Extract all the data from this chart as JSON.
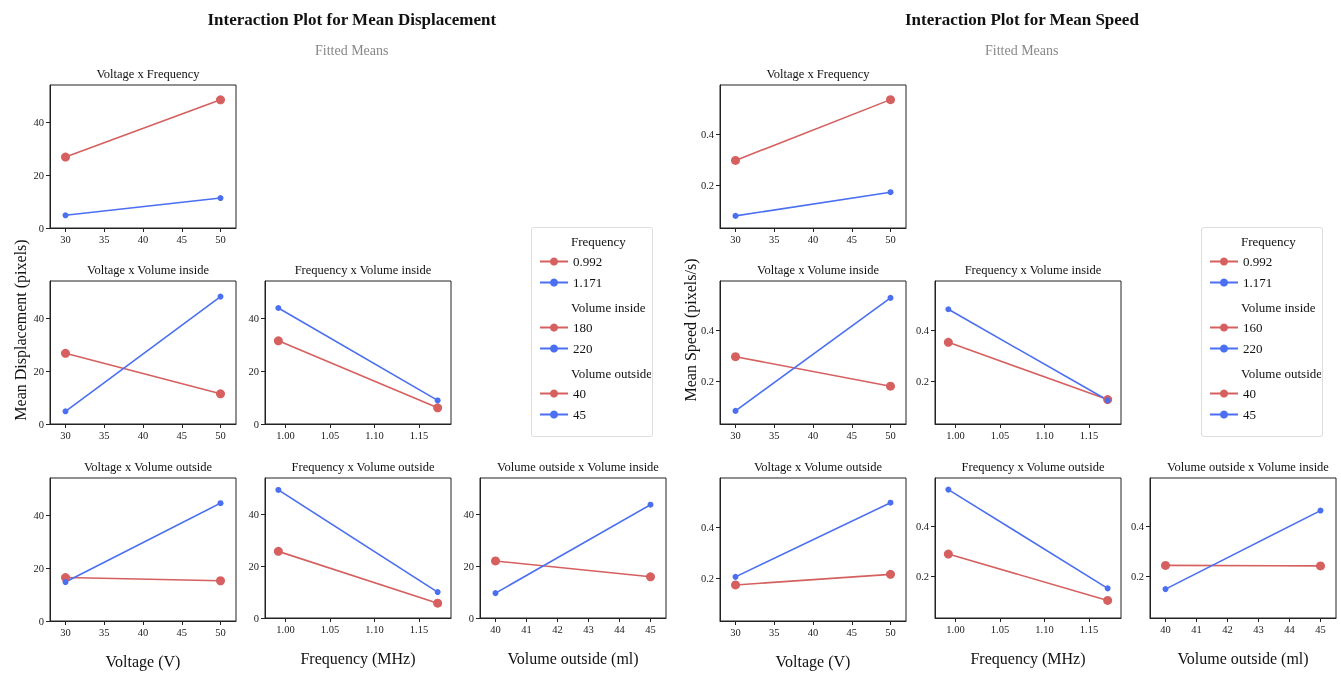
{
  "chart_data": [
    {
      "type": "line",
      "title": "Voltage x Frequency",
      "annotations": [
        "Interaction Plot for Mean Displacement",
        "Fitted Means"
      ],
      "legend": "right",
      "legend_title": "Frequency",
      "marker": "circle",
      "x": [
        30,
        50
      ],
      "xlim": [
        28,
        52
      ],
      "xticks": [
        30,
        35,
        40,
        45,
        50
      ],
      "ylim": [
        0,
        54
      ],
      "yticks": [
        0,
        20,
        40
      ],
      "series": [
        {
          "name": "0.992",
          "color": "#d65f5f",
          "values": [
            26.8,
            48.4
          ]
        },
        {
          "name": "1.171",
          "color": "#4a6ff0",
          "values": [
            4.8,
            11.3
          ]
        }
      ]
    },
    {
      "type": "line",
      "title": "Voltage x Volume inside",
      "ylabel": "Mean Displacement (pixels)",
      "legend": "right",
      "legend_title": "Volume inside",
      "marker": "circle",
      "x": [
        30,
        50
      ],
      "xlim": [
        28,
        52
      ],
      "xticks": [
        30,
        35,
        40,
        45,
        50
      ],
      "ylim": [
        0,
        54
      ],
      "yticks": [
        0,
        20,
        40
      ],
      "series": [
        {
          "name": "180",
          "color": "#d65f5f",
          "values": [
            26.7,
            11.4
          ]
        },
        {
          "name": "220",
          "color": "#4a6ff0",
          "values": [
            4.8,
            48.1
          ]
        }
      ]
    },
    {
      "type": "line",
      "title": "Frequency x Volume inside",
      "marker": "circle",
      "x": [
        0.992,
        1.171
      ],
      "xlim": [
        0.977,
        1.186
      ],
      "xticks": [
        {
          "value": 1.0,
          "label": "1.00"
        },
        {
          "value": 1.05,
          "label": "1.05"
        },
        {
          "value": 1.1,
          "label": "1.10"
        },
        {
          "value": 1.15,
          "label": "1.15"
        }
      ],
      "ylim": [
        0,
        54
      ],
      "yticks": [
        0,
        20,
        40
      ],
      "series": [
        {
          "color": "#d65f5f",
          "values": [
            31.4,
            6.1
          ]
        },
        {
          "color": "#4a6ff0",
          "values": [
            43.8,
            8.9
          ]
        }
      ]
    },
    {
      "type": "line",
      "title": "Voltage x Volume outside",
      "xlabel": "Voltage (V)",
      "legend": "right",
      "legend_title": "Volume outside",
      "marker": "circle",
      "x": [
        30,
        50
      ],
      "xlim": [
        28,
        52
      ],
      "xticks": [
        30,
        35,
        40,
        45,
        50
      ],
      "ylim": [
        0,
        54
      ],
      "yticks": [
        0,
        20,
        40
      ],
      "series": [
        {
          "name": "40",
          "color": "#d65f5f",
          "values": [
            16.4,
            15.2
          ]
        },
        {
          "name": "45",
          "color": "#4a6ff0",
          "values": [
            14.7,
            44.5
          ]
        }
      ]
    },
    {
      "type": "line",
      "title": "Frequency x Volume outside",
      "xlabel": "Frequency (MHz)",
      "marker": "circle",
      "x": [
        0.992,
        1.171
      ],
      "xlim": [
        0.977,
        1.186
      ],
      "xticks": [
        {
          "value": 1.0,
          "label": "1.00"
        },
        {
          "value": 1.05,
          "label": "1.05"
        },
        {
          "value": 1.1,
          "label": "1.10"
        },
        {
          "value": 1.15,
          "label": "1.15"
        }
      ],
      "ylim": [
        0,
        54
      ],
      "yticks": [
        0,
        20,
        40
      ],
      "series": [
        {
          "color": "#d65f5f",
          "values": [
            25.7,
            5.7
          ]
        },
        {
          "color": "#4a6ff0",
          "values": [
            49.4,
            10.0
          ]
        }
      ]
    },
    {
      "type": "line",
      "title": "Volume outside x Volume inside",
      "xlabel": "Volume outside (ml)",
      "marker": "circle",
      "x": [
        40,
        45
      ],
      "xlim": [
        39.5,
        45.5
      ],
      "xticks": [
        40,
        41,
        42,
        43,
        44,
        45
      ],
      "ylim": [
        0,
        54
      ],
      "yticks": [
        0,
        20,
        40
      ],
      "series": [
        {
          "color": "#d65f5f",
          "values": [
            22.0,
            15.9
          ]
        },
        {
          "color": "#4a6ff0",
          "values": [
            9.6,
            43.7
          ]
        }
      ]
    },
    {
      "type": "line",
      "title": "Voltage x Frequency",
      "annotations": [
        "Interaction Plot for Mean Speed",
        "Fitted Means"
      ],
      "legend": "right",
      "legend_title": "Frequency",
      "marker": "circle",
      "x": [
        30,
        50
      ],
      "xlim": [
        28,
        52
      ],
      "xticks": [
        30,
        35,
        40,
        45,
        50
      ],
      "ylim": [
        0.03,
        0.597
      ],
      "yticks": [
        0.2,
        0.4
      ],
      "series": [
        {
          "name": "0.992",
          "color": "#d65f5f",
          "values": [
            0.298,
            0.539
          ]
        },
        {
          "name": "1.171",
          "color": "#4a6ff0",
          "values": [
            0.078,
            0.172
          ]
        }
      ]
    },
    {
      "type": "line",
      "title": "Voltage x Volume inside",
      "ylabel": "Mean Speed (pixels/s)",
      "legend": "right",
      "legend_title": "Volume inside",
      "marker": "circle",
      "x": [
        30,
        50
      ],
      "xlim": [
        28,
        52
      ],
      "xticks": [
        30,
        35,
        40,
        45,
        50
      ],
      "ylim": [
        0.03,
        0.597
      ],
      "yticks": [
        0.2,
        0.4
      ],
      "series": [
        {
          "name": "160",
          "color": "#d65f5f",
          "values": [
            0.297,
            0.18
          ]
        },
        {
          "name": "220",
          "color": "#4a6ff0",
          "values": [
            0.082,
            0.53
          ]
        }
      ]
    },
    {
      "type": "line",
      "title": "Frequency x Volume inside",
      "marker": "circle",
      "x": [
        0.992,
        1.171
      ],
      "xlim": [
        0.977,
        1.186
      ],
      "xticks": [
        {
          "value": 1.0,
          "label": "1.00"
        },
        {
          "value": 1.05,
          "label": "1.05"
        },
        {
          "value": 1.1,
          "label": "1.10"
        },
        {
          "value": 1.15,
          "label": "1.15"
        }
      ],
      "ylim": [
        0.03,
        0.597
      ],
      "yticks": [
        0.2,
        0.4
      ],
      "series": [
        {
          "color": "#d65f5f",
          "values": [
            0.354,
            0.127
          ]
        },
        {
          "color": "#4a6ff0",
          "values": [
            0.485,
            0.124
          ]
        }
      ]
    },
    {
      "type": "line",
      "title": "Voltage x Volume outside",
      "xlabel": "Voltage (V)",
      "legend": "right",
      "legend_title": "Volume outside",
      "marker": "circle",
      "x": [
        30,
        50
      ],
      "xlim": [
        28,
        52
      ],
      "xticks": [
        30,
        35,
        40,
        45,
        50
      ],
      "ylim": [
        0.03,
        0.597
      ],
      "yticks": [
        0.2,
        0.4
      ],
      "series": [
        {
          "name": "40",
          "color": "#d65f5f",
          "values": [
            0.173,
            0.215
          ]
        },
        {
          "name": "45",
          "color": "#4a6ff0",
          "values": [
            0.205,
            0.499
          ]
        }
      ]
    },
    {
      "type": "line",
      "title": "Frequency x Volume outside",
      "xlabel": "Frequency (MHz)",
      "marker": "circle",
      "x": [
        0.992,
        1.171
      ],
      "xlim": [
        0.977,
        1.186
      ],
      "xticks": [
        {
          "value": 1.0,
          "label": "1.00"
        },
        {
          "value": 1.05,
          "label": "1.05"
        },
        {
          "value": 1.1,
          "label": "1.10"
        },
        {
          "value": 1.15,
          "label": "1.15"
        }
      ],
      "ylim": [
        0.03,
        0.597
      ],
      "yticks": [
        0.2,
        0.4
      ],
      "series": [
        {
          "color": "#d65f5f",
          "values": [
            0.289,
            0.101
          ]
        },
        {
          "color": "#4a6ff0",
          "values": [
            0.55,
            0.15
          ]
        }
      ]
    },
    {
      "type": "line",
      "title": "Volume outside x Volume inside",
      "xlabel": "Volume outside (ml)",
      "marker": "circle",
      "x": [
        40,
        45
      ],
      "xlim": [
        39.5,
        45.5
      ],
      "xticks": [
        40,
        41,
        42,
        43,
        44,
        45
      ],
      "ylim": [
        0.03,
        0.597
      ],
      "yticks": [
        0.2,
        0.4
      ],
      "series": [
        {
          "color": "#d65f5f",
          "values": [
            0.243,
            0.241
          ]
        },
        {
          "color": "#4a6ff0",
          "values": [
            0.147,
            0.465
          ]
        }
      ]
    }
  ]
}
